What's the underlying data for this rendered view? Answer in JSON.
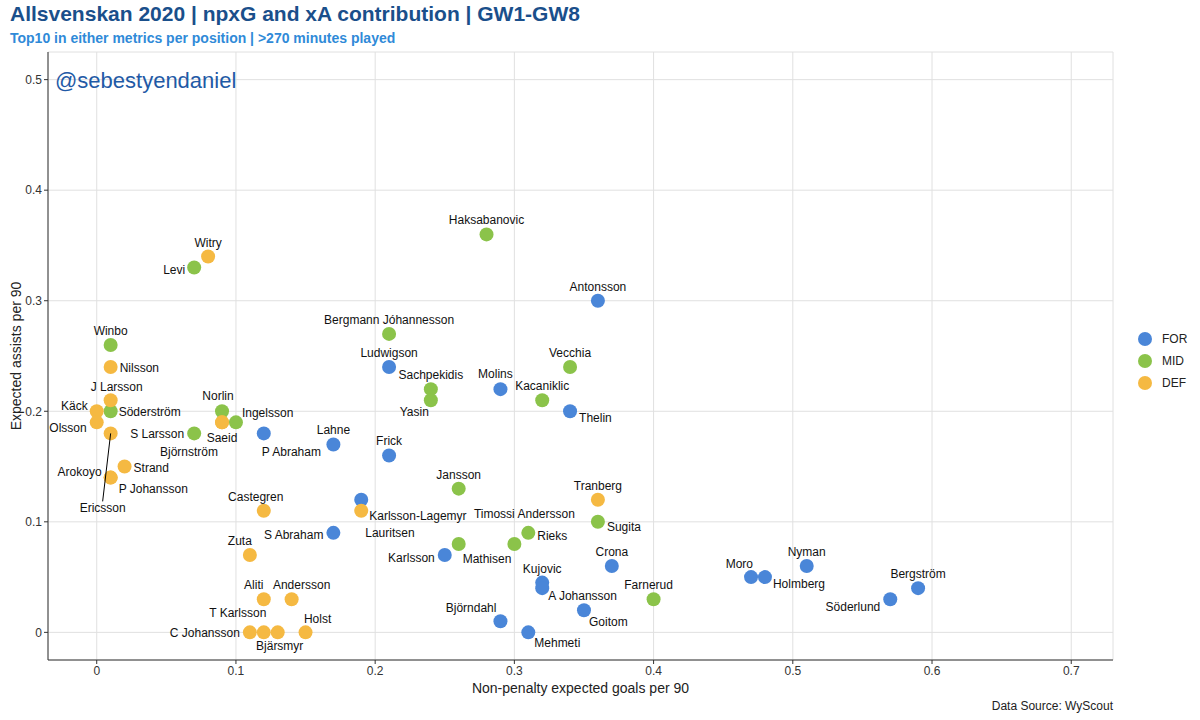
{
  "chart_data": {
    "type": "scatter",
    "title": "Allsvenskan 2020 | npxG and xA contribution | GW1-GW8",
    "subtitle": "Top10 in either metrics per position | >270 minutes played",
    "watermark": "@sebestyendaniel",
    "source": "Data Source: WyScout",
    "x_label": "Non-penalty expected goals per 90",
    "y_label": "Expected assists per 90",
    "xlim": [
      -0.035,
      0.73
    ],
    "ylim": [
      -0.025,
      0.525
    ],
    "xticks": [
      0,
      0.1,
      0.2,
      0.3,
      0.4,
      0.5,
      0.6,
      0.7
    ],
    "yticks": [
      0,
      0.1,
      0.2,
      0.3,
      0.4,
      0.5
    ],
    "grid": true,
    "legend": "right",
    "marker": "circle",
    "series": [
      {
        "name": "FOR",
        "color": "#4a86d8",
        "labels": [
          "Antonsson",
          "Ludwigson",
          "Molins",
          "Thelin",
          "P Abraham",
          "Lahne",
          "Frick",
          "Karlsson-Lagemyr",
          "S Abraham",
          "Karlsson",
          "Björndahl",
          "Mehmeti",
          "Kujovic",
          "A Johansson",
          "Goitom",
          "Crona",
          "Moro",
          "Holmberg",
          "Nyman",
          "Söderlund",
          "Bergström"
        ],
        "x": [
          0.36,
          0.21,
          0.29,
          0.34,
          0.12,
          0.17,
          0.21,
          0.19,
          0.17,
          0.25,
          0.29,
          0.31,
          0.32,
          0.32,
          0.35,
          0.37,
          0.47,
          0.48,
          0.51,
          0.57,
          0.59
        ],
        "y": [
          0.3,
          0.24,
          0.22,
          0.2,
          0.18,
          0.17,
          0.16,
          0.12,
          0.09,
          0.07,
          0.01,
          0.0,
          0.045,
          0.04,
          0.02,
          0.06,
          0.05,
          0.05,
          0.06,
          0.03,
          0.04
        ]
      },
      {
        "name": "MID",
        "color": "#8bc34a",
        "labels": [
          "Haksabanovic",
          "Levi",
          "Bergmann Jóhannesson",
          "Vecchia",
          "Winbo",
          "Sachpekidis",
          "Yasin",
          "Kacaniklic",
          "Söderström",
          "Norlin",
          "Ingelsson",
          "S Larsson",
          "Jansson",
          "Timossi Andersson",
          "Rieks",
          "Mathisen",
          "Sugita",
          "Farnerud"
        ],
        "x": [
          0.28,
          0.07,
          0.21,
          0.34,
          0.01,
          0.24,
          0.24,
          0.32,
          0.01,
          0.09,
          0.1,
          0.07,
          0.26,
          0.3,
          0.31,
          0.26,
          0.36,
          0.4
        ],
        "y": [
          0.36,
          0.33,
          0.27,
          0.24,
          0.26,
          0.22,
          0.21,
          0.21,
          0.2,
          0.2,
          0.19,
          0.18,
          0.13,
          0.08,
          0.09,
          0.08,
          0.1,
          0.03
        ]
      },
      {
        "name": "DEF",
        "color": "#f5b942",
        "labels": [
          "Witry",
          "Nilsson",
          "J Larsson",
          "Käck",
          "Olsson",
          "Arokoyo",
          "P Johansson",
          "Ericsson",
          "Strand",
          "Saeid",
          "Björnström",
          "Castegren",
          "Zuta",
          "Aliti",
          "Andersson",
          "T Karlsson",
          "C Johansson",
          "Bjärsmyr",
          "Holst",
          "Tranberg",
          "Lauritsen"
        ],
        "x": [
          0.08,
          0.01,
          0.01,
          0.0,
          0.0,
          0.01,
          0.01,
          0.01,
          0.02,
          0.09,
          0.09,
          0.12,
          0.11,
          0.12,
          0.14,
          0.12,
          0.11,
          0.13,
          0.15,
          0.36,
          0.19
        ],
        "y": [
          0.34,
          0.24,
          0.21,
          0.2,
          0.19,
          0.14,
          0.14,
          0.18,
          0.15,
          0.19,
          0.19,
          0.11,
          0.07,
          0.03,
          0.03,
          0.0,
          0.0,
          0.0,
          0.0,
          0.12,
          0.11
        ]
      }
    ]
  }
}
